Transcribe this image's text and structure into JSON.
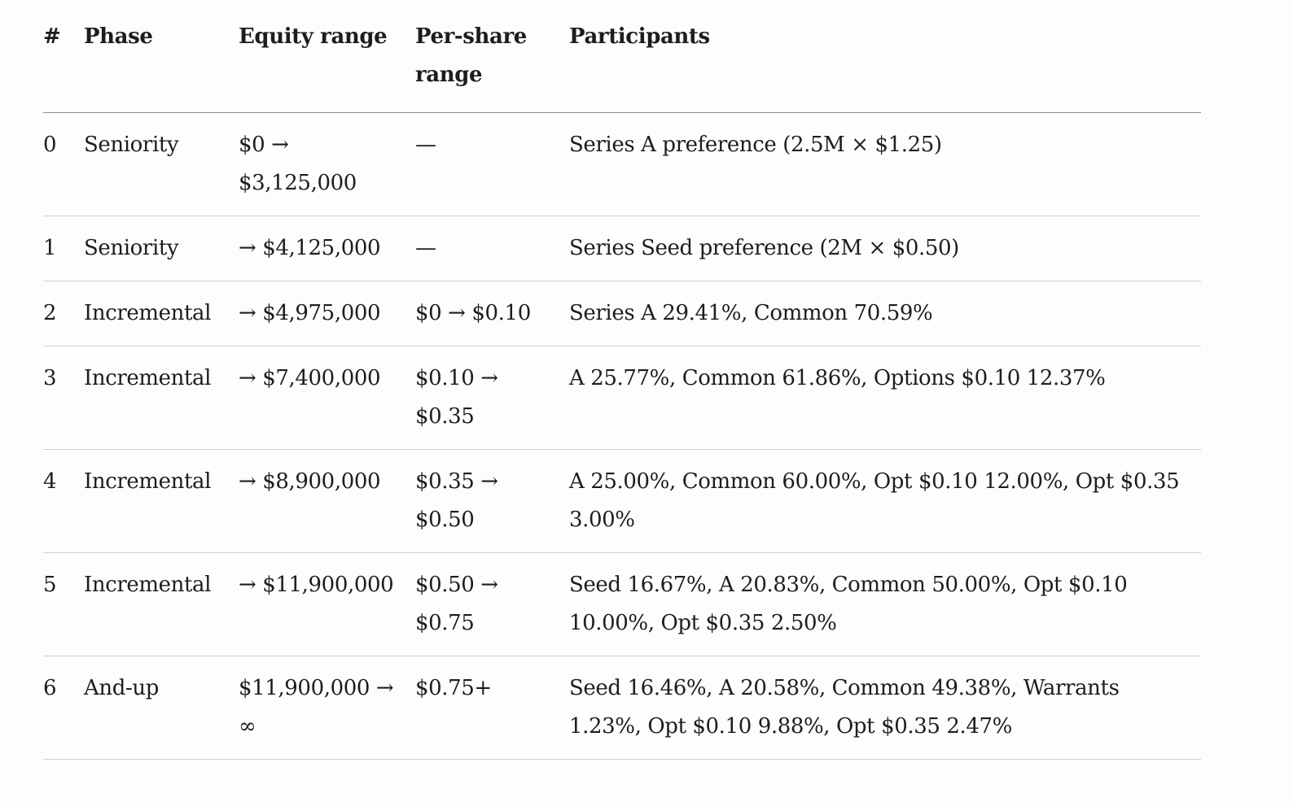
{
  "table": {
    "headers": {
      "num": "#",
      "phase": "Phase",
      "equity": "Equity range",
      "per_share": "Per-share range",
      "participants": "Participants"
    },
    "rows": [
      {
        "num": "0",
        "phase": "Seniority",
        "equity": "$0 → $3,125,000",
        "per_share": "—",
        "participants": "Series A preference (2.5M × $1.25)"
      },
      {
        "num": "1",
        "phase": "Seniority",
        "equity": "→ $4,125,000",
        "per_share": "—",
        "participants": "Series Seed preference (2M × $0.50)"
      },
      {
        "num": "2",
        "phase": "Incremental",
        "equity": "→ $4,975,000",
        "per_share": "$0 → $0.10",
        "participants": "Series A 29.41%, Common 70.59%"
      },
      {
        "num": "3",
        "phase": "Incremental",
        "equity": "→ $7,400,000",
        "per_share": "$0.10 → $0.35",
        "participants": "A 25.77%, Common 61.86%, Options $0.10 12.37%"
      },
      {
        "num": "4",
        "phase": "Incremental",
        "equity": "→ $8,900,000",
        "per_share": "$0.35 → $0.50",
        "participants": "A 25.00%, Common 60.00%, Opt $0.10 12.00%, Opt $0.35 3.00%"
      },
      {
        "num": "5",
        "phase": "Incremental",
        "equity": "→ $11,900,000",
        "per_share": "$0.50 → $0.75",
        "participants": "Seed 16.67%, A 20.83%, Common 50.00%, Opt $0.10 10.00%, Opt $0.35 2.50%"
      },
      {
        "num": "6",
        "phase": "And-up",
        "equity": "$11,900,000 → ∞",
        "per_share": "$0.75+",
        "participants": "Seed 16.46%, A 20.58%, Common 49.38%, Warrants 1.23%, Opt $0.10 9.88%, Opt $0.35 2.47%"
      }
    ]
  }
}
